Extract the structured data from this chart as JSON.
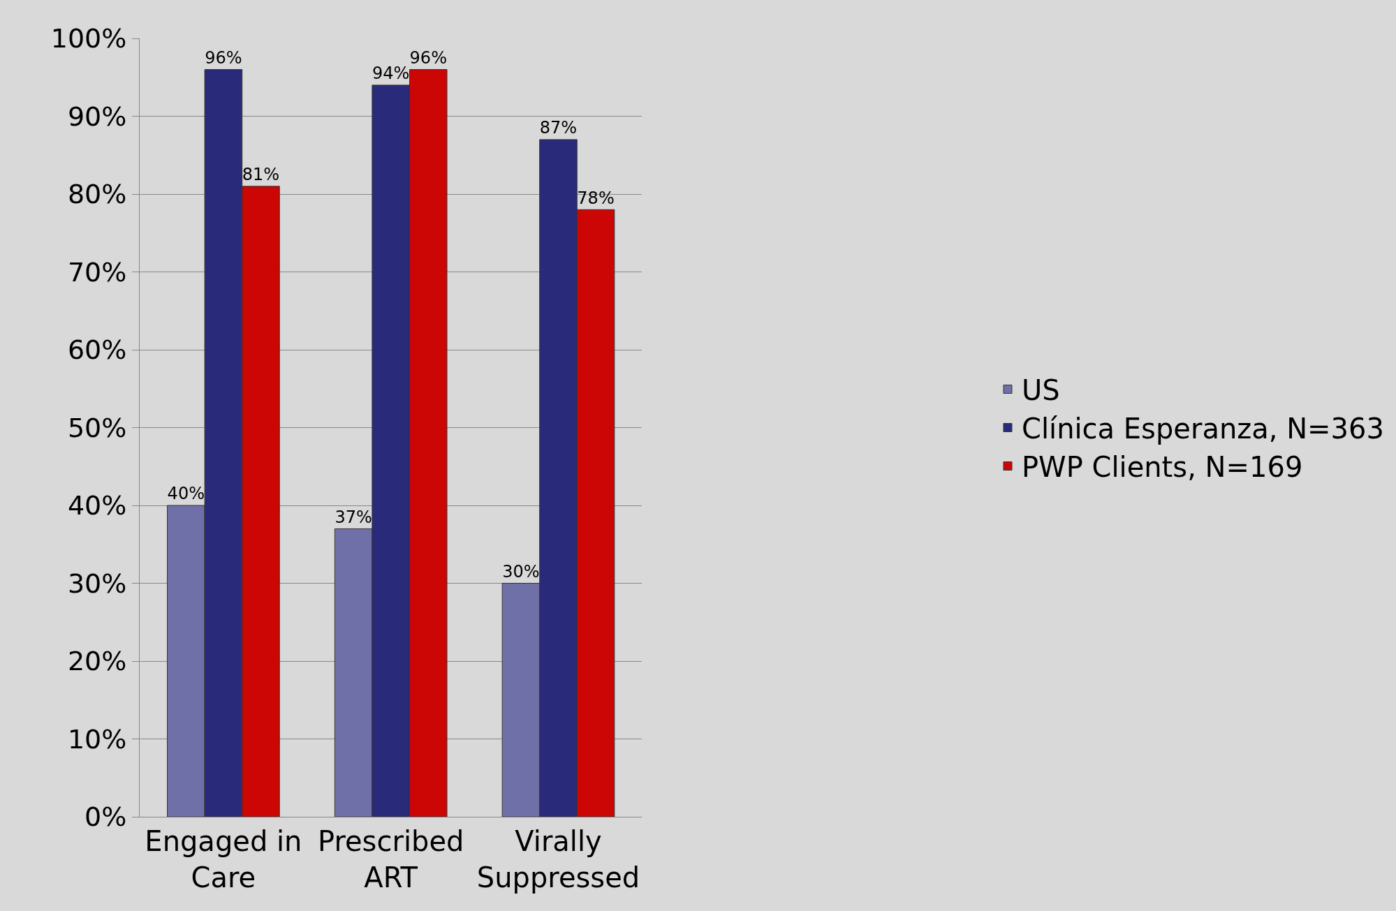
{
  "chart_data": {
    "type": "bar",
    "categories": [
      "Engaged in Care",
      "Prescribed ART",
      "Virally Suppressed"
    ],
    "series": [
      {
        "name": "US",
        "color": "#7070a8",
        "values": [
          40,
          37,
          30
        ]
      },
      {
        "name": "Clínica Esperanza, N=363",
        "color": "#2a2a7a",
        "values": [
          96,
          94,
          87
        ]
      },
      {
        "name": "PWP Clients, N=169",
        "color": "#cc0505",
        "values": [
          81,
          96,
          78
        ]
      }
    ],
    "value_labels": [
      [
        "40%",
        "37%",
        "30%"
      ],
      [
        "96%",
        "94%",
        "87%"
      ],
      [
        "81%",
        "96%",
        "78%"
      ]
    ],
    "ylim": [
      0,
      100
    ],
    "yticks": [
      {
        "value": 0,
        "label": "0%"
      },
      {
        "value": 10,
        "label": "10%"
      },
      {
        "value": 20,
        "label": "20%"
      },
      {
        "value": 30,
        "label": "30%"
      },
      {
        "value": 40,
        "label": "40%"
      },
      {
        "value": 50,
        "label": "50%"
      },
      {
        "value": 60,
        "label": "60%"
      },
      {
        "value": 70,
        "label": "70%"
      },
      {
        "value": 80,
        "label": "80%"
      },
      {
        "value": 90,
        "label": "90%"
      },
      {
        "value": 100,
        "label": "100%"
      }
    ],
    "grid": "y",
    "legend": "right"
  }
}
